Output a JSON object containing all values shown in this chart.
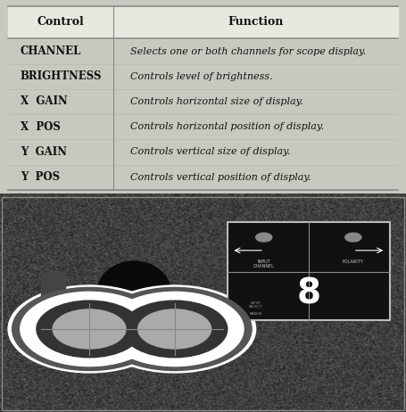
{
  "title": "",
  "col1_header": "Control",
  "col2_header": "Function",
  "rows": [
    [
      "CHANNEL",
      "Selects one or both channels for scope display."
    ],
    [
      "BRIGHTNESS",
      "Controls level of brightness."
    ],
    [
      "X  GAIN",
      "Controls horizontal size of display."
    ],
    [
      "X  POS",
      "Controls horizontal position of display."
    ],
    [
      "Y  GAIN",
      "Controls vertical size of display."
    ],
    [
      "Y  POS",
      "Controls vertical position of display."
    ]
  ],
  "table_bg": "#f5f5f0",
  "header_bg": "#e8e8e0",
  "line_color": "#888888",
  "text_color": "#111111",
  "header_fontsize": 9,
  "row_fontsize": 8.5,
  "col_split": 0.28,
  "fig_bg": "#d8d8d0",
  "photo_bg": "#1a1a1a",
  "outer_bg": "#c8c8c0"
}
